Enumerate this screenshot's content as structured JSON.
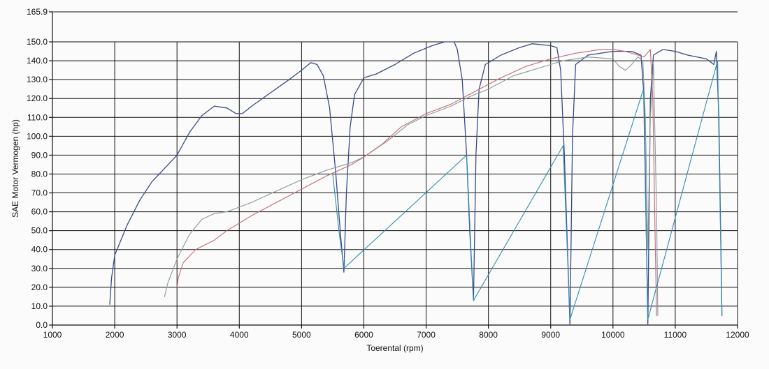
{
  "chart_data": {
    "type": "line",
    "xlabel": "Toerental (rpm)",
    "ylabel": "SAE Motor Vermogen (hp)",
    "xlim": [
      1000,
      12000
    ],
    "ylim": [
      0,
      165.9
    ],
    "grid": true,
    "x_ticks": [
      {
        "value": 1000,
        "label": "1000"
      },
      {
        "value": 2000,
        "label": "2000"
      },
      {
        "value": 3000,
        "label": "3000"
      },
      {
        "value": 4000,
        "label": "4000"
      },
      {
        "value": 5000,
        "label": "5000"
      },
      {
        "value": 6000,
        "label": "6000"
      },
      {
        "value": 7000,
        "label": "7000"
      },
      {
        "value": 8000,
        "label": "8000"
      },
      {
        "value": 9000,
        "label": "9000"
      },
      {
        "value": 10000,
        "label": "10000"
      },
      {
        "value": 11000,
        "label": "11000"
      },
      {
        "value": 12000,
        "label": "12000"
      }
    ],
    "y_ticks": [
      {
        "value": 0,
        "label": "0.0"
      },
      {
        "value": 10,
        "label": "10.0"
      },
      {
        "value": 20,
        "label": "20.0"
      },
      {
        "value": 30,
        "label": "30.0"
      },
      {
        "value": 40,
        "label": "40.0"
      },
      {
        "value": 50,
        "label": "50.0"
      },
      {
        "value": 60,
        "label": "60.0"
      },
      {
        "value": 70,
        "label": "70.0"
      },
      {
        "value": 80,
        "label": "80.0"
      },
      {
        "value": 90,
        "label": "90.0"
      },
      {
        "value": 100,
        "label": "100.0"
      },
      {
        "value": 110,
        "label": "110.0"
      },
      {
        "value": 120,
        "label": "120.0"
      },
      {
        "value": 130,
        "label": "130.0"
      },
      {
        "value": 140,
        "label": "140.0"
      },
      {
        "value": 150,
        "label": "150.0"
      },
      {
        "value": 165.9,
        "label": "165.9"
      }
    ],
    "series": [
      {
        "color": "#3a4a88",
        "points": [
          [
            1920,
            11
          ],
          [
            1950,
            25
          ],
          [
            2000,
            37
          ],
          [
            2100,
            45
          ],
          [
            2200,
            53
          ],
          [
            2400,
            66
          ],
          [
            2600,
            76
          ],
          [
            2800,
            83
          ],
          [
            3000,
            90
          ],
          [
            3200,
            102
          ],
          [
            3400,
            111
          ],
          [
            3600,
            116
          ],
          [
            3800,
            115
          ],
          [
            3950,
            112
          ],
          [
            4050,
            112
          ],
          [
            4200,
            116
          ],
          [
            4500,
            123
          ],
          [
            4800,
            130
          ],
          [
            5000,
            135
          ],
          [
            5150,
            139
          ],
          [
            5250,
            138
          ],
          [
            5350,
            132
          ],
          [
            5450,
            115
          ],
          [
            5550,
            80
          ],
          [
            5620,
            50
          ],
          [
            5680,
            28
          ],
          [
            5720,
            70
          ],
          [
            5780,
            105
          ],
          [
            5850,
            122
          ],
          [
            6000,
            131
          ],
          [
            6200,
            133
          ],
          [
            6500,
            138
          ],
          [
            6800,
            144
          ],
          [
            7100,
            148
          ],
          [
            7300,
            150
          ],
          [
            7450,
            150
          ],
          [
            7500,
            146
          ],
          [
            7580,
            130
          ],
          [
            7650,
            90
          ],
          [
            7700,
            50
          ],
          [
            7760,
            13
          ],
          [
            7800,
            90
          ],
          [
            7850,
            125
          ],
          [
            7950,
            138
          ],
          [
            8200,
            143
          ],
          [
            8500,
            147
          ],
          [
            8700,
            149
          ],
          [
            9000,
            148
          ],
          [
            9100,
            147
          ],
          [
            9160,
            135
          ],
          [
            9220,
            90
          ],
          [
            9270,
            40
          ],
          [
            9310,
            0
          ],
          [
            9350,
            100
          ],
          [
            9400,
            138
          ],
          [
            9600,
            143
          ],
          [
            10000,
            145
          ],
          [
            10300,
            145
          ],
          [
            10450,
            143
          ],
          [
            10500,
            120
          ],
          [
            10530,
            60
          ],
          [
            10560,
            0
          ],
          [
            10600,
            120
          ],
          [
            10650,
            143
          ],
          [
            10800,
            146
          ],
          [
            11000,
            145
          ],
          [
            11200,
            143
          ],
          [
            11500,
            141
          ],
          [
            11620,
            138
          ],
          [
            11660,
            145
          ],
          [
            11700,
            110
          ],
          [
            11750,
            5
          ]
        ]
      },
      {
        "color": "#8a9a9a",
        "points": [
          [
            2800,
            15
          ],
          [
            2850,
            22
          ],
          [
            3000,
            35
          ],
          [
            3200,
            48
          ],
          [
            3400,
            56
          ],
          [
            3600,
            59
          ],
          [
            3800,
            60
          ],
          [
            4200,
            65
          ],
          [
            4600,
            71
          ],
          [
            5000,
            77
          ],
          [
            5400,
            82
          ],
          [
            5800,
            86
          ],
          [
            6000,
            89
          ],
          [
            6400,
            98
          ],
          [
            6700,
            106
          ],
          [
            7000,
            111
          ],
          [
            7400,
            116
          ],
          [
            7700,
            121
          ],
          [
            8000,
            125
          ],
          [
            8400,
            132
          ],
          [
            8800,
            136
          ],
          [
            9200,
            140
          ],
          [
            9600,
            142
          ],
          [
            10000,
            141
          ],
          [
            10100,
            137
          ],
          [
            10200,
            135
          ],
          [
            10300,
            138
          ],
          [
            10400,
            142
          ],
          [
            10480,
            140
          ],
          [
            10520,
            110
          ],
          [
            10560,
            40
          ],
          [
            10600,
            110
          ],
          [
            10650,
            138
          ],
          [
            10700,
            60
          ],
          [
            10720,
            5
          ]
        ]
      },
      {
        "color": "#c46a72",
        "points": [
          [
            3000,
            20
          ],
          [
            3020,
            25
          ],
          [
            3100,
            33
          ],
          [
            3300,
            40
          ],
          [
            3600,
            45
          ],
          [
            3800,
            50
          ],
          [
            4200,
            58
          ],
          [
            4600,
            65
          ],
          [
            5000,
            72
          ],
          [
            5400,
            79
          ],
          [
            5800,
            85
          ],
          [
            6000,
            89
          ],
          [
            6300,
            96
          ],
          [
            6600,
            105
          ],
          [
            7000,
            112
          ],
          [
            7400,
            117
          ],
          [
            7800,
            124
          ],
          [
            8200,
            131
          ],
          [
            8600,
            137
          ],
          [
            9000,
            141
          ],
          [
            9400,
            144
          ],
          [
            9800,
            146
          ],
          [
            10000,
            146
          ],
          [
            10200,
            145
          ],
          [
            10400,
            143
          ],
          [
            10500,
            142
          ],
          [
            10600,
            146
          ],
          [
            10640,
            120
          ],
          [
            10680,
            40
          ],
          [
            10700,
            5
          ]
        ]
      },
      {
        "color": "#2f8fb0",
        "points": [
          [
            5500,
            80
          ],
          [
            5600,
            50
          ],
          [
            5680,
            30
          ],
          [
            7650,
            90
          ],
          [
            7720,
            40
          ],
          [
            7760,
            13
          ],
          [
            9200,
            95
          ],
          [
            9260,
            45
          ],
          [
            9310,
            3
          ],
          [
            10490,
            125
          ],
          [
            10530,
            55
          ],
          [
            10560,
            3
          ],
          [
            11680,
            140
          ],
          [
            11720,
            60
          ],
          [
            11750,
            5
          ]
        ]
      }
    ]
  }
}
